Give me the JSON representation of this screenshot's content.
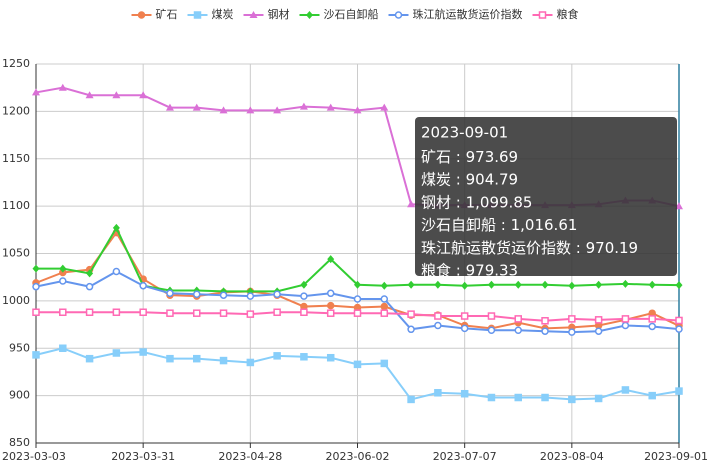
{
  "chart_data": {
    "type": "line",
    "categories": [
      "2023-03-03",
      null,
      null,
      null,
      "2023-03-31",
      null,
      null,
      null,
      "2023-04-28",
      null,
      null,
      null,
      "2023-06-02",
      null,
      null,
      null,
      "2023-07-07",
      null,
      null,
      null,
      "2023-08-04",
      null,
      null,
      null,
      "2023-09-01"
    ],
    "series": [
      {
        "name": "矿石",
        "color": "#f0804f",
        "symbol": "circle",
        "values": [
          1019,
          1030,
          1033,
          1072,
          1023,
          1006,
          1005,
          1009,
          1010,
          1006,
          994,
          995,
          993,
          994,
          985,
          985,
          974,
          971,
          977,
          971,
          972,
          974,
          980,
          987,
          973.69
        ]
      },
      {
        "name": "煤炭",
        "color": "#87cefa",
        "symbol": "square",
        "values": [
          943,
          950,
          939,
          945,
          946,
          939,
          939,
          937,
          935,
          942,
          941,
          940,
          933,
          934,
          896,
          903,
          902,
          898,
          898,
          898,
          896,
          897,
          906,
          900,
          904.79
        ]
      },
      {
        "name": "钢材",
        "color": "#da70d6",
        "symbol": "triangle",
        "values": [
          1220,
          1225,
          1217,
          1217,
          1217,
          1204,
          1204,
          1201,
          1201,
          1201,
          1205,
          1204,
          1201,
          1204,
          1102,
          1101,
          1101,
          1101,
          1101,
          1101,
          1101,
          1102,
          1106,
          1106,
          1099.85
        ]
      },
      {
        "name": "沙石自卸船",
        "color": "#32cd32",
        "symbol": "diamond",
        "values": [
          1034,
          1034,
          1029,
          1077,
          1016,
          1011,
          1011,
          1010,
          1010,
          1010,
          1017,
          1044,
          1017,
          1016,
          1017,
          1017,
          1016,
          1017,
          1017,
          1017,
          1016,
          1017,
          1018,
          1017,
          1016.61
        ]
      },
      {
        "name": "珠江航运散货运价指数",
        "color": "#6495ed",
        "symbol": "emptyCircle",
        "values": [
          1015,
          1021,
          1015,
          1031,
          1016,
          1008,
          1007,
          1006,
          1005,
          1007,
          1005,
          1008,
          1002,
          1002,
          970,
          974,
          971,
          969,
          969,
          968,
          967,
          968,
          974,
          973,
          970.19
        ]
      },
      {
        "name": "粮食",
        "color": "#ff69b4",
        "symbol": "emptySquare",
        "values": [
          988,
          988,
          988,
          988,
          988,
          987,
          987,
          987,
          986,
          988,
          988,
          987,
          987,
          987,
          986,
          984,
          984,
          984,
          981,
          979,
          981,
          980,
          981,
          981,
          979.33
        ]
      }
    ],
    "ylim": [
      850,
      1250
    ],
    "yticks": [
      850,
      900,
      950,
      1000,
      1050,
      1100,
      1150,
      1200,
      1250
    ],
    "grid": true,
    "legend": "top",
    "tooltip": {
      "title": "2023-09-01",
      "separator": " : ",
      "labels": [
        "973.69",
        "904.79",
        "1,099.85",
        "1,016.61",
        "970.19",
        "979.33"
      ]
    }
  }
}
